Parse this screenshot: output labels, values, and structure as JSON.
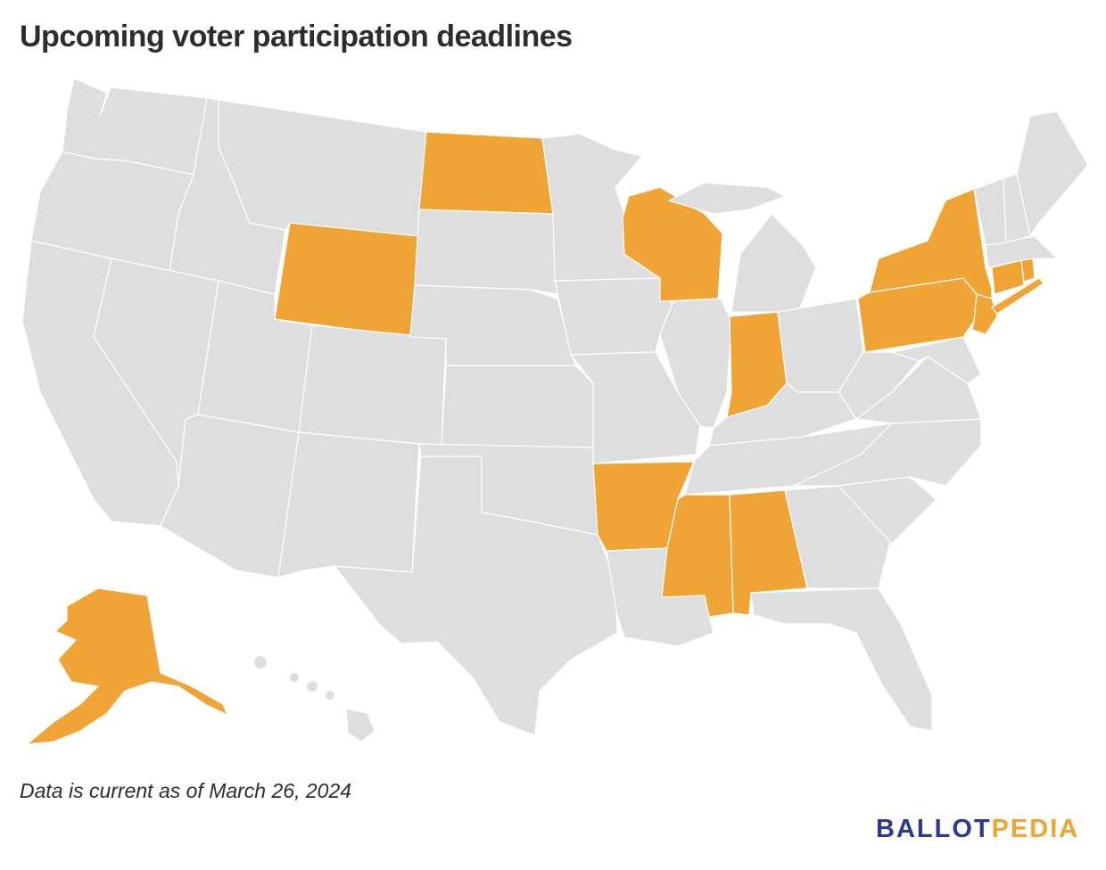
{
  "title": "Upcoming voter participation deadlines",
  "note": "Data is current as of March 26, 2024",
  "logo": {
    "part1": "BALLOT",
    "part2": "PEDIA"
  },
  "colors": {
    "highlighted": "#f0a435",
    "other": "#dedede",
    "border": "#ffffff"
  },
  "highlighted_states": [
    "North Dakota",
    "Wyoming",
    "Wisconsin",
    "Indiana",
    "New York",
    "Pennsylvania",
    "Connecticut",
    "Rhode Island",
    "New Jersey",
    "Arkansas",
    "Mississippi",
    "Alabama",
    "Alaska"
  ]
}
